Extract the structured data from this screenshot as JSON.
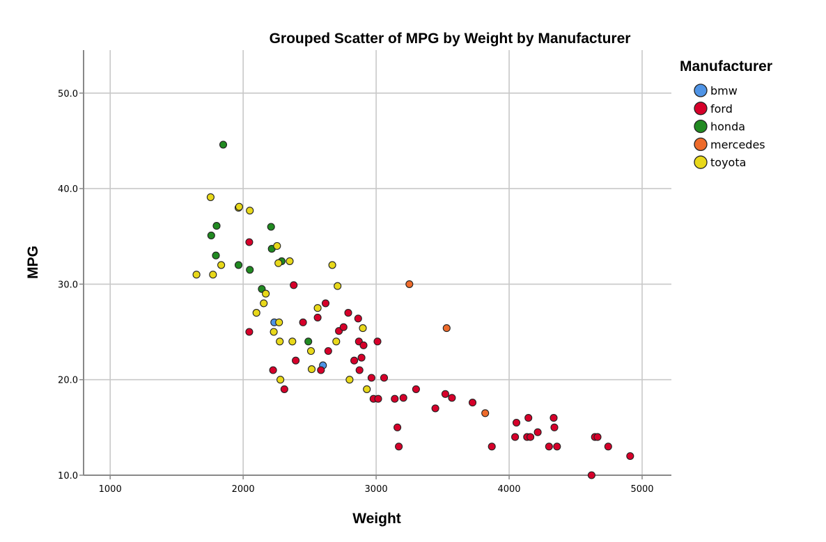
{
  "chart_data": {
    "type": "scatter",
    "title": "Grouped Scatter of MPG by Weight by Manufacturer",
    "xlabel": "Weight",
    "ylabel": "MPG",
    "xlim": [
      800,
      5220
    ],
    "ylim": [
      10,
      54.5
    ],
    "xticks": [
      1000,
      2000,
      3000,
      4000,
      5000
    ],
    "xtick_labels": [
      "1000",
      "2000",
      "3000",
      "4000",
      "5000"
    ],
    "yticks": [
      10,
      20,
      30,
      40,
      50
    ],
    "ytick_labels": [
      "10.0",
      "20.0",
      "30.0",
      "40.0",
      "50.0"
    ],
    "grid": true,
    "legend_title": "Manufacturer",
    "legend_position": "right",
    "series": [
      {
        "name": "bmw",
        "color": "#4f94e6",
        "points": [
          [
            2234,
            26
          ],
          [
            2600,
            21.5
          ]
        ]
      },
      {
        "name": "ford",
        "color": "#d6002a",
        "points": [
          [
            2046,
            34.4
          ],
          [
            2046,
            25
          ],
          [
            2380,
            29.9
          ],
          [
            2225,
            21
          ],
          [
            2310,
            19
          ],
          [
            2395,
            22
          ],
          [
            2450,
            26
          ],
          [
            2560,
            26.5
          ],
          [
            2585,
            21
          ],
          [
            2620,
            28
          ],
          [
            2640,
            23
          ],
          [
            2720,
            25.1
          ],
          [
            2755,
            25.5
          ],
          [
            2790,
            27
          ],
          [
            2835,
            22
          ],
          [
            2865,
            26.4
          ],
          [
            2870,
            24
          ],
          [
            2875,
            21
          ],
          [
            2890,
            22.3
          ],
          [
            2905,
            23.6
          ],
          [
            2965,
            20.2
          ],
          [
            2980,
            18
          ],
          [
            3010,
            24
          ],
          [
            3015,
            18
          ],
          [
            3060,
            20.2
          ],
          [
            3140,
            18
          ],
          [
            3160,
            15
          ],
          [
            3170,
            13
          ],
          [
            3205,
            18.1
          ],
          [
            3300,
            19
          ],
          [
            3445,
            17
          ],
          [
            3520,
            18.5
          ],
          [
            3570,
            18.1
          ],
          [
            3725,
            17.6
          ],
          [
            3870,
            13
          ],
          [
            4045,
            14
          ],
          [
            4055,
            15.5
          ],
          [
            4135,
            14
          ],
          [
            4145,
            16
          ],
          [
            4160,
            14
          ],
          [
            4215,
            14.5
          ],
          [
            4300,
            13
          ],
          [
            4335,
            16
          ],
          [
            4340,
            15
          ],
          [
            4360,
            13
          ],
          [
            4620,
            10
          ],
          [
            4645,
            14
          ],
          [
            4665,
            14
          ],
          [
            4745,
            13
          ],
          [
            4910,
            12
          ]
        ]
      },
      {
        "name": "honda",
        "color": "#218a21",
        "points": [
          [
            1850,
            44.6
          ],
          [
            1760,
            35.1
          ],
          [
            1800,
            36.1
          ],
          [
            1795,
            33
          ],
          [
            1965,
            32
          ],
          [
            2050,
            31.5
          ],
          [
            2210,
            36
          ],
          [
            2215,
            33.7
          ],
          [
            2290,
            32.4
          ],
          [
            2140,
            29.5
          ],
          [
            2490,
            24
          ]
        ]
      },
      {
        "name": "mercedes",
        "color": "#ee6b2b",
        "points": [
          [
            3250,
            30
          ],
          [
            3530,
            25.4
          ],
          [
            3820,
            16.5
          ]
        ]
      },
      {
        "name": "toyota",
        "color": "#e8d81a",
        "points": [
          [
            1649,
            31
          ],
          [
            1755,
            39.1
          ],
          [
            1773,
            31
          ],
          [
            1835,
            32
          ],
          [
            1965,
            38
          ],
          [
            1970,
            38.1
          ],
          [
            2050,
            37.7
          ],
          [
            2100,
            27
          ],
          [
            2155,
            28
          ],
          [
            2170,
            29
          ],
          [
            2230,
            25
          ],
          [
            2255,
            34
          ],
          [
            2265,
            32.2
          ],
          [
            2270,
            26
          ],
          [
            2275,
            24
          ],
          [
            2280,
            20
          ],
          [
            2350,
            32.4
          ],
          [
            2370,
            24
          ],
          [
            2510,
            23
          ],
          [
            2515,
            21.1
          ],
          [
            2560,
            27.5
          ],
          [
            2670,
            32
          ],
          [
            2700,
            24
          ],
          [
            2710,
            29.8
          ],
          [
            2800,
            20
          ],
          [
            2900,
            25.4
          ],
          [
            2930,
            19
          ]
        ]
      }
    ]
  }
}
